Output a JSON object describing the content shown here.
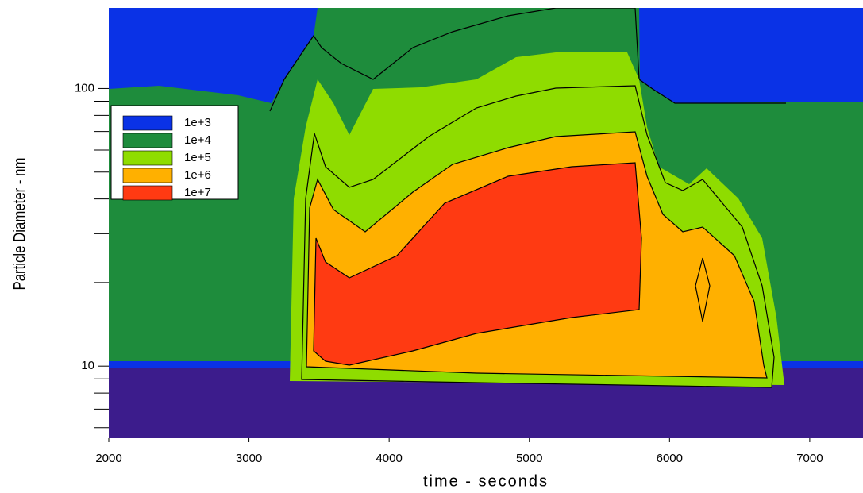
{
  "chart_data": {
    "type": "contour",
    "xlabel": "time - seconds",
    "ylabel": "Particle Diameter - nm",
    "xlim": [
      2000,
      7380
    ],
    "xticks": [
      2000,
      3000,
      4000,
      5000,
      6000,
      7000
    ],
    "ylim": [
      5.5,
      195
    ],
    "yticks": [
      10,
      100
    ],
    "yminor": [
      6,
      7,
      8,
      9,
      20,
      30,
      40,
      50,
      60,
      70,
      80,
      90
    ],
    "log_y": true,
    "values": [
      1000,
      10000,
      100000,
      1000000,
      10000000
    ],
    "value_labels": [
      "1e+3",
      "1e+4",
      "1e+5",
      "1e+6",
      "1e+7"
    ],
    "colors": [
      "#0a32e6",
      "#1e8c3c",
      "#8fdc00",
      "#ffb000",
      "#ff3a12"
    ]
  }
}
